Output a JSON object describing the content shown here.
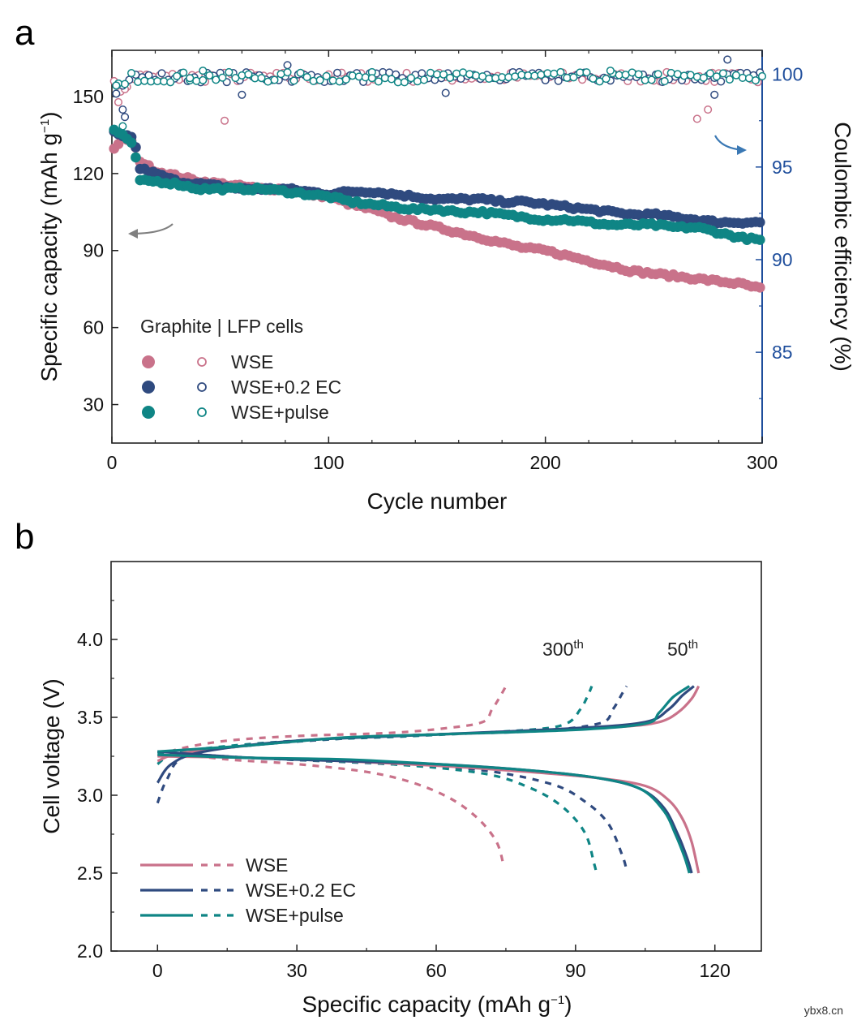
{
  "figure": {
    "watermark": "ybx8.cn"
  },
  "colors": {
    "wse": "#c9728a",
    "wse_ec": "#2f4a7f",
    "wse_pulse": "#0f8585",
    "right_axis": "#1f4e9c",
    "arrow_gray": "#808080",
    "arrow_blue": "#3a78b4"
  },
  "chart_data": [
    {
      "panel": "a",
      "type": "scatter",
      "xlabel": "Cycle number",
      "ylabel": "Specific capacity (mAh g",
      "ylabel_sup": "−1",
      "ylabel_close": ")",
      "y2label": "Coulombic efficiency (%)",
      "xlim": [
        0,
        300
      ],
      "ylim": [
        15,
        168
      ],
      "y2lim": [
        80.1,
        101.3
      ],
      "xticks": [
        0,
        100,
        200,
        300
      ],
      "yticks": [
        30,
        60,
        90,
        120,
        150
      ],
      "y2ticks": [
        85,
        90,
        95,
        100
      ],
      "legend_title": "Graphite | LFP cells",
      "series": [
        {
          "name": "WSE",
          "key": "wse",
          "capacity_points": [
            [
              1,
              130
            ],
            [
              3,
              131
            ],
            [
              5,
              134
            ],
            [
              8,
              133
            ],
            [
              10,
              132
            ],
            [
              13,
              125
            ],
            [
              20,
              121
            ],
            [
              30,
              119
            ],
            [
              40,
              117
            ],
            [
              50,
              116
            ],
            [
              60,
              115
            ],
            [
              70,
              114
            ],
            [
              80,
              114
            ],
            [
              90,
              112
            ],
            [
              100,
              111
            ],
            [
              110,
              108
            ],
            [
              120,
              106
            ],
            [
              130,
              103
            ],
            [
              140,
              101
            ],
            [
              150,
              99
            ],
            [
              160,
              97
            ],
            [
              170,
              95
            ],
            [
              180,
              93
            ],
            [
              190,
              91
            ],
            [
              200,
              90
            ],
            [
              210,
              88
            ],
            [
              220,
              86
            ],
            [
              230,
              84
            ],
            [
              240,
              82
            ],
            [
              250,
              81
            ],
            [
              260,
              80
            ],
            [
              270,
              79
            ],
            [
              280,
              78
            ],
            [
              290,
              77
            ],
            [
              300,
              75
            ]
          ],
          "ce_points": [
            [
              3,
              98.5
            ],
            [
              6,
              99.2
            ],
            [
              52,
              97.5
            ],
            [
              270,
              97.6
            ],
            [
              275,
              98.1
            ],
            [
              278,
              99.6
            ],
            [
              100,
              100.0
            ],
            [
              200,
              100.0
            ]
          ]
        },
        {
          "name": "WSE+0.2 EC",
          "key": "wse_ec",
          "capacity_points": [
            [
              1,
              136
            ],
            [
              3,
              135
            ],
            [
              5,
              134
            ],
            [
              8,
              135
            ],
            [
              10,
              134
            ],
            [
              13,
              122
            ],
            [
              20,
              120
            ],
            [
              30,
              117
            ],
            [
              40,
              116
            ],
            [
              50,
              115
            ],
            [
              60,
              114
            ],
            [
              70,
              114
            ],
            [
              80,
              114
            ],
            [
              90,
              113
            ],
            [
              100,
              112
            ],
            [
              110,
              113
            ],
            [
              120,
              113
            ],
            [
              130,
              112
            ],
            [
              140,
              111
            ],
            [
              150,
              110
            ],
            [
              160,
              110
            ],
            [
              170,
              110
            ],
            [
              180,
              109
            ],
            [
              190,
              109
            ],
            [
              200,
              108
            ],
            [
              210,
              107
            ],
            [
              220,
              106
            ],
            [
              230,
              105
            ],
            [
              240,
              104
            ],
            [
              250,
              104
            ],
            [
              260,
              103
            ],
            [
              270,
              102
            ],
            [
              280,
              101
            ],
            [
              290,
              101
            ],
            [
              300,
              101
            ]
          ],
          "ce_points": [
            [
              5,
              98.1
            ],
            [
              6,
              97.7
            ],
            [
              60,
              98.9
            ],
            [
              81,
              100.5
            ],
            [
              154,
              99.0
            ],
            [
              278,
              98.9
            ],
            [
              284,
              100.8
            ]
          ]
        },
        {
          "name": "WSE+pulse",
          "key": "wse_pulse",
          "capacity_points": [
            [
              1,
              137
            ],
            [
              3,
              136
            ],
            [
              5,
              135
            ],
            [
              8,
              132
            ],
            [
              10,
              131
            ],
            [
              13,
              117
            ],
            [
              20,
              117
            ],
            [
              30,
              116
            ],
            [
              40,
              114
            ],
            [
              50,
              114
            ],
            [
              60,
              114
            ],
            [
              70,
              114
            ],
            [
              80,
              113
            ],
            [
              90,
              112
            ],
            [
              100,
              111
            ],
            [
              110,
              109
            ],
            [
              120,
              108
            ],
            [
              130,
              107
            ],
            [
              140,
              106
            ],
            [
              150,
              106
            ],
            [
              160,
              105
            ],
            [
              170,
              105
            ],
            [
              180,
              104
            ],
            [
              190,
              103
            ],
            [
              200,
              102
            ],
            [
              210,
              102
            ],
            [
              220,
              101
            ],
            [
              230,
              100
            ],
            [
              240,
              100
            ],
            [
              250,
              100
            ],
            [
              260,
              99
            ],
            [
              270,
              99
            ],
            [
              280,
              97
            ],
            [
              290,
              95
            ],
            [
              300,
              94
            ]
          ],
          "ce_points": [
            [
              2,
              99.4
            ],
            [
              5,
              97.2
            ],
            [
              36,
              99.8
            ],
            [
              42,
              100.2
            ],
            [
              120,
              99.8
            ],
            [
              230,
              100.2
            ]
          ]
        }
      ],
      "annotations": [
        {
          "type": "arrow",
          "direction": "left",
          "color": "gray"
        },
        {
          "type": "arrow",
          "direction": "right",
          "color": "blue"
        }
      ]
    },
    {
      "panel": "b",
      "type": "line",
      "xlabel": "Specific capacity (mAh g",
      "xlabel_sup": "−1",
      "xlabel_close": ")",
      "ylabel": "Cell voltage (V)",
      "xlim": [
        -10,
        130
      ],
      "ylim": [
        2.0,
        4.5
      ],
      "xticks": [
        0,
        30,
        60,
        90,
        120
      ],
      "yticks": [
        2.0,
        2.5,
        3.0,
        3.5,
        4.0
      ],
      "legend": [
        "WSE",
        "WSE+0.2 EC",
        "WSE+pulse"
      ],
      "annotations": [
        {
          "text": "300",
          "sup": "th",
          "x": 85,
          "y": 3.85
        },
        {
          "text": "50",
          "sup": "th",
          "x": 109,
          "y": 3.85
        }
      ],
      "series": [
        {
          "name": "WSE",
          "key": "wse",
          "cycle50_charge": [
            [
              0,
              3.22
            ],
            [
              5,
              3.27
            ],
            [
              20,
              3.32
            ],
            [
              40,
              3.37
            ],
            [
              60,
              3.39
            ],
            [
              80,
              3.41
            ],
            [
              100,
              3.44
            ],
            [
              108,
              3.47
            ],
            [
              112,
              3.53
            ],
            [
              115,
              3.62
            ],
            [
              116.5,
              3.7
            ]
          ],
          "cycle50_discharge": [
            [
              0,
              3.25
            ],
            [
              20,
              3.24
            ],
            [
              40,
              3.22
            ],
            [
              60,
              3.19
            ],
            [
              80,
              3.15
            ],
            [
              95,
              3.11
            ],
            [
              105,
              3.06
            ],
            [
              110,
              2.97
            ],
            [
              113,
              2.85
            ],
            [
              115,
              2.7
            ],
            [
              116.5,
              2.5
            ]
          ],
          "cycle300_charge": [
            [
              0,
              3.25
            ],
            [
              5,
              3.3
            ],
            [
              15,
              3.35
            ],
            [
              30,
              3.38
            ],
            [
              50,
              3.4
            ],
            [
              62,
              3.43
            ],
            [
              70,
              3.47
            ],
            [
              72,
              3.55
            ],
            [
              73.5,
              3.62
            ],
            [
              75,
              3.7
            ]
          ],
          "cycle300_discharge": [
            [
              0,
              3.28
            ],
            [
              15,
              3.23
            ],
            [
              30,
              3.2
            ],
            [
              45,
              3.15
            ],
            [
              55,
              3.08
            ],
            [
              63,
              2.98
            ],
            [
              69,
              2.85
            ],
            [
              73,
              2.7
            ],
            [
              74.5,
              2.55
            ]
          ]
        },
        {
          "name": "WSE+0.2 EC",
          "key": "wse_ec",
          "cycle50_charge": [
            [
              0,
              3.08
            ],
            [
              3,
              3.2
            ],
            [
              10,
              3.28
            ],
            [
              30,
              3.35
            ],
            [
              60,
              3.39
            ],
            [
              90,
              3.43
            ],
            [
              105,
              3.47
            ],
            [
              110,
              3.55
            ],
            [
              113,
              3.64
            ],
            [
              115.5,
              3.7
            ]
          ],
          "cycle50_discharge": [
            [
              0,
              3.28
            ],
            [
              20,
              3.24
            ],
            [
              40,
              3.22
            ],
            [
              60,
              3.2
            ],
            [
              80,
              3.16
            ],
            [
              95,
              3.11
            ],
            [
              104,
              3.04
            ],
            [
              109,
              2.92
            ],
            [
              112,
              2.75
            ],
            [
              114,
              2.6
            ],
            [
              115,
              2.5
            ]
          ],
          "cycle300_charge": [
            [
              0,
              2.95
            ],
            [
              2,
              3.1
            ],
            [
              6,
              3.25
            ],
            [
              20,
              3.32
            ],
            [
              50,
              3.38
            ],
            [
              80,
              3.41
            ],
            [
              95,
              3.46
            ],
            [
              98,
              3.55
            ],
            [
              100,
              3.65
            ],
            [
              101,
              3.7
            ]
          ],
          "cycle300_discharge": [
            [
              0,
              3.28
            ],
            [
              20,
              3.24
            ],
            [
              50,
              3.2
            ],
            [
              70,
              3.16
            ],
            [
              85,
              3.07
            ],
            [
              92,
              2.96
            ],
            [
              97,
              2.82
            ],
            [
              100,
              2.62
            ],
            [
              101,
              2.52
            ]
          ]
        },
        {
          "name": "WSE+pulse",
          "key": "wse_pulse",
          "cycle50_charge": [
            [
              0,
              3.28
            ],
            [
              5,
              3.29
            ],
            [
              20,
              3.32
            ],
            [
              40,
              3.37
            ],
            [
              60,
              3.39
            ],
            [
              90,
              3.42
            ],
            [
              105,
              3.46
            ],
            [
              108,
              3.53
            ],
            [
              111,
              3.63
            ],
            [
              114.5,
              3.7
            ]
          ],
          "cycle50_discharge": [
            [
              0,
              3.26
            ],
            [
              20,
              3.24
            ],
            [
              40,
              3.23
            ],
            [
              60,
              3.2
            ],
            [
              80,
              3.16
            ],
            [
              95,
              3.11
            ],
            [
              104,
              3.04
            ],
            [
              109,
              2.9
            ],
            [
              111.5,
              2.75
            ],
            [
              113.5,
              2.6
            ],
            [
              114.5,
              2.5
            ]
          ],
          "cycle300_charge": [
            [
              0,
              3.2
            ],
            [
              3,
              3.26
            ],
            [
              10,
              3.3
            ],
            [
              30,
              3.35
            ],
            [
              55,
              3.38
            ],
            [
              80,
              3.42
            ],
            [
              88,
              3.46
            ],
            [
              91,
              3.55
            ],
            [
              92.5,
              3.63
            ],
            [
              93.5,
              3.7
            ]
          ],
          "cycle300_discharge": [
            [
              0,
              3.27
            ],
            [
              20,
              3.24
            ],
            [
              50,
              3.2
            ],
            [
              70,
              3.14
            ],
            [
              80,
              3.05
            ],
            [
              87,
              2.93
            ],
            [
              92,
              2.76
            ],
            [
              94,
              2.56
            ],
            [
              94.5,
              2.5
            ]
          ]
        }
      ]
    }
  ]
}
